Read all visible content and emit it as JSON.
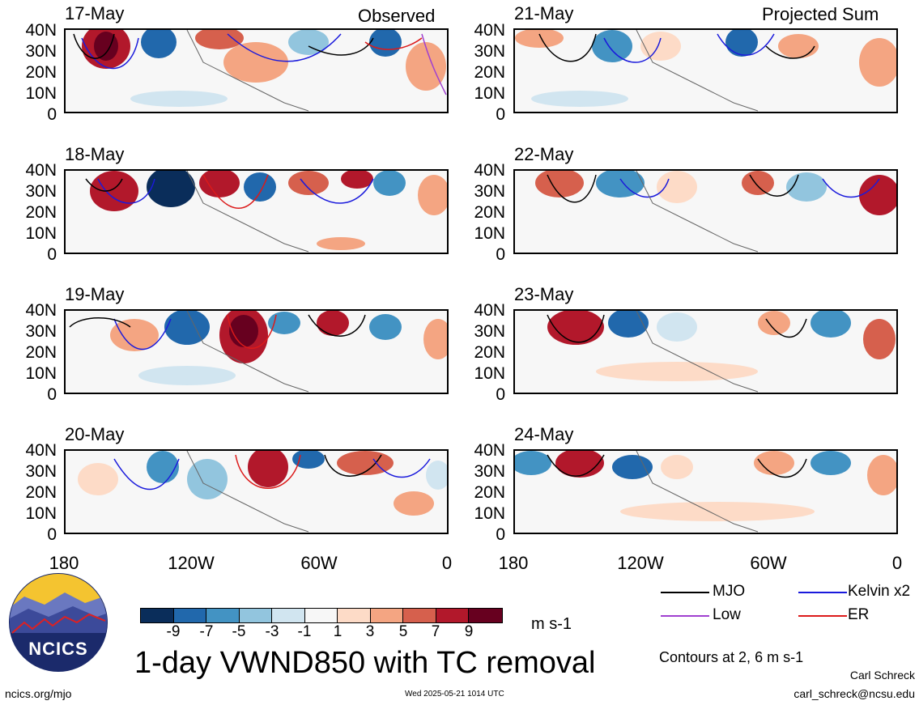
{
  "header": {
    "left_label": "Observed",
    "right_label": "Projected Sum"
  },
  "panels_left": [
    {
      "date": "17-May"
    },
    {
      "date": "18-May"
    },
    {
      "date": "19-May"
    },
    {
      "date": "20-May"
    }
  ],
  "panels_right": [
    {
      "date": "21-May"
    },
    {
      "date": "22-May"
    },
    {
      "date": "23-May"
    },
    {
      "date": "24-May"
    }
  ],
  "y_ticks": [
    "40N",
    "30N",
    "20N",
    "10N",
    "0"
  ],
  "x_ticks": [
    "180",
    "120W",
    "60W",
    "0"
  ],
  "colorbar": {
    "colors": [
      "#0a2d5a",
      "#2168ac",
      "#4393c3",
      "#92c5de",
      "#d1e5f0",
      "#f7f7f7",
      "#fddbc7",
      "#f4a582",
      "#d6604d",
      "#b2182b",
      "#67001f"
    ],
    "labels": [
      "-9",
      "-7",
      "-5",
      "-3",
      "-1",
      "1",
      "3",
      "5",
      "7",
      "9"
    ],
    "units": "m s-1"
  },
  "legend": [
    {
      "label": "MJO",
      "color": "#000000"
    },
    {
      "label": "Kelvin x2",
      "color": "#1a1adc"
    },
    {
      "label": "Low",
      "color": "#a040d0"
    },
    {
      "label": "ER",
      "color": "#dc1a1a"
    }
  ],
  "contours_note": "Contours at 2, 6 m s-1",
  "main_title": "1-day VWND850 with TC removal",
  "logo": {
    "text": "NCICS"
  },
  "footer": {
    "url": "ncics.org/mjo",
    "timestamp": "Wed 2025-05-21 1014 UTC",
    "author": "Carl Schreck",
    "email": "carl_schreck@ncsu.edu"
  }
}
